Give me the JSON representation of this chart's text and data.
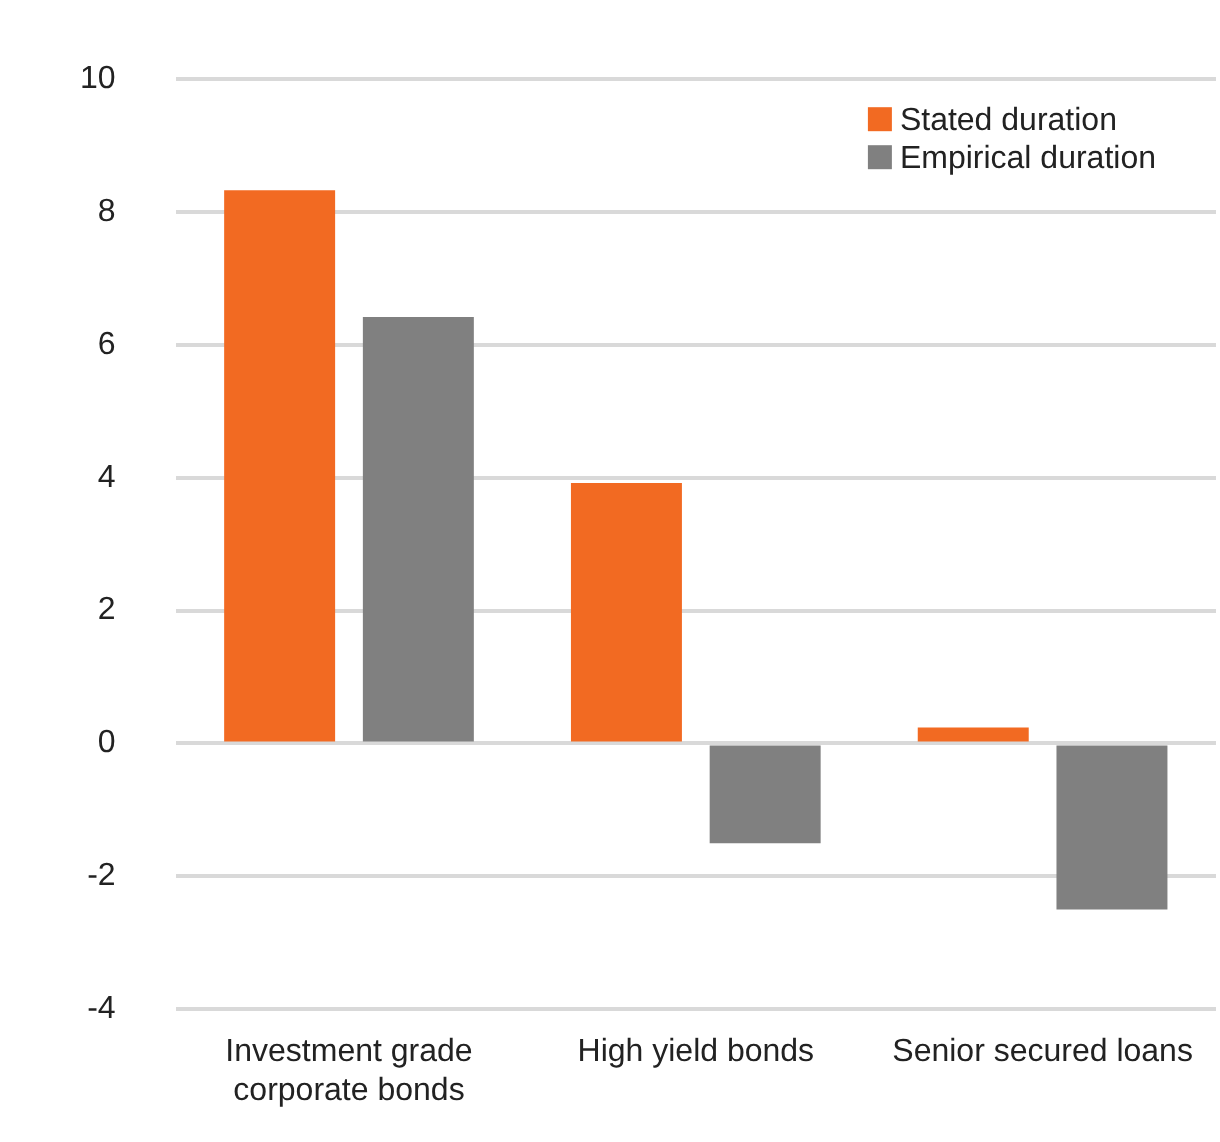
{
  "chart_data": {
    "type": "bar",
    "categories": [
      "Investment grade corporate bonds",
      "High yield bonds",
      "Senior secured loans"
    ],
    "series": [
      {
        "name": "Stated duration",
        "color": "#f26a22",
        "values": [
          8.33,
          3.92,
          0.24
        ]
      },
      {
        "name": "Empirical duration",
        "color": "#808080",
        "values": [
          6.42,
          -1.5,
          -2.5
        ]
      }
    ],
    "ylim": [
      -4,
      10
    ],
    "yticks": [
      -4,
      -2,
      0,
      2,
      4,
      6,
      8,
      10
    ],
    "grid": "y",
    "legend": "top right"
  }
}
